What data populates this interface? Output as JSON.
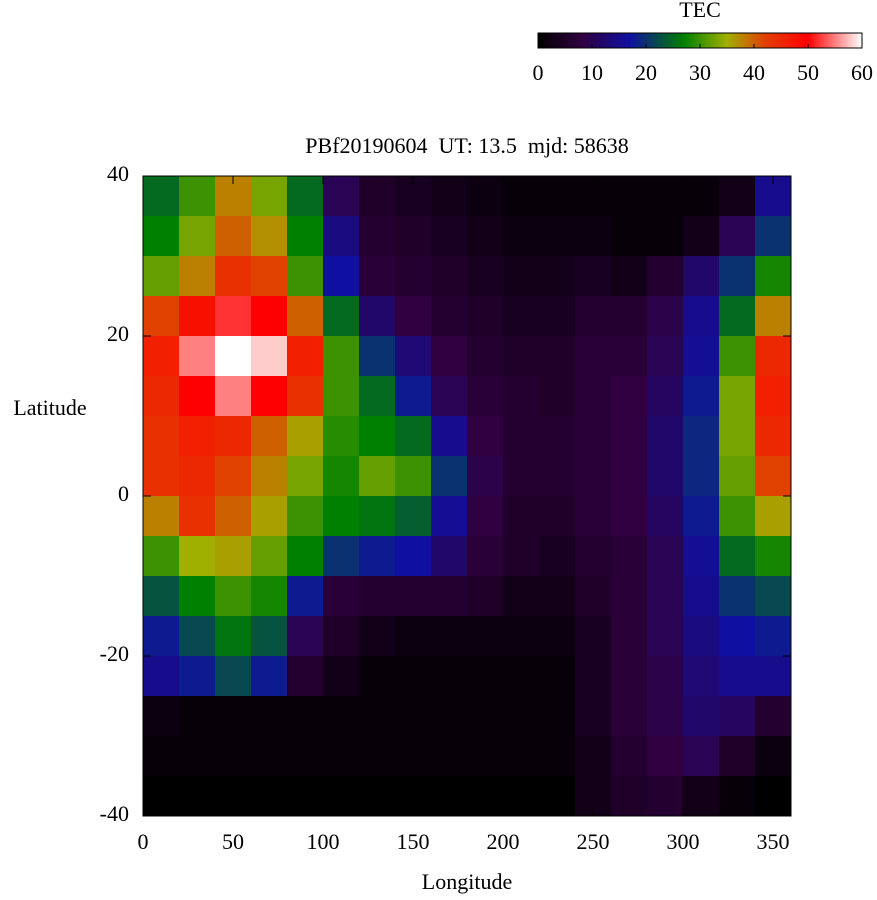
{
  "chart_data": {
    "type": "heatmap",
    "title": "PBf20190604  UT: 13.5  mjd: 58638",
    "xlabel": "Longitude",
    "ylabel": "Latitude",
    "x": [
      10,
      30,
      50,
      70,
      90,
      110,
      130,
      150,
      170,
      190,
      210,
      230,
      250,
      270,
      290,
      310,
      330,
      350
    ],
    "y": [
      37.5,
      32.5,
      27.5,
      22.5,
      17.5,
      12.5,
      7.5,
      2.5,
      -2.5,
      -7.5,
      -12.5,
      -17.5,
      -22.5,
      -27.5,
      -32.5,
      -37.5
    ],
    "xlim": [
      0,
      360
    ],
    "ylim": [
      -40,
      40
    ],
    "xticks": [
      0,
      50,
      100,
      150,
      200,
      250,
      300,
      350
    ],
    "yticks": [
      -40,
      -20,
      0,
      20,
      40
    ],
    "values": [
      [
        25,
        30,
        38,
        33,
        25,
        10,
        5,
        4,
        3,
        2,
        1,
        1,
        1,
        1,
        1,
        1,
        3,
        15
      ],
      [
        27,
        33,
        40,
        37,
        27,
        14,
        6,
        5,
        4,
        3,
        2,
        2,
        2,
        1,
        1,
        3,
        10,
        20
      ],
      [
        32,
        38,
        44,
        42,
        30,
        17,
        7,
        6,
        5,
        4,
        3,
        3,
        4,
        3,
        6,
        12,
        20,
        28
      ],
      [
        42,
        48,
        52,
        50,
        40,
        25,
        12,
        8,
        6,
        5,
        4,
        4,
        6,
        6,
        9,
        15,
        25,
        38
      ],
      [
        46,
        55,
        60,
        58,
        46,
        30,
        20,
        13,
        8,
        6,
        5,
        5,
        7,
        7,
        10,
        16,
        30,
        45
      ],
      [
        45,
        50,
        55,
        50,
        44,
        30,
        25,
        18,
        10,
        7,
        6,
        5,
        7,
        8,
        11,
        18,
        33,
        46
      ],
      [
        44,
        46,
        45,
        40,
        36,
        29,
        27,
        25,
        15,
        8,
        6,
        6,
        7,
        8,
        12,
        19,
        33,
        45
      ],
      [
        44,
        45,
        42,
        38,
        33,
        28,
        32,
        30,
        20,
        9,
        6,
        6,
        7,
        8,
        12,
        19,
        32,
        42
      ],
      [
        38,
        44,
        40,
        36,
        30,
        27,
        26,
        24,
        16,
        8,
        5,
        5,
        7,
        8,
        11,
        18,
        30,
        36
      ],
      [
        30,
        35,
        36,
        32,
        27,
        20,
        18,
        17,
        12,
        7,
        5,
        4,
        6,
        7,
        10,
        16,
        25,
        28
      ],
      [
        23,
        27,
        30,
        28,
        18,
        7,
        6,
        6,
        6,
        5,
        3,
        3,
        5,
        7,
        10,
        15,
        20,
        22
      ],
      [
        18,
        22,
        26,
        23,
        10,
        5,
        3,
        2,
        2,
        2,
        2,
        2,
        4,
        7,
        10,
        14,
        17,
        18
      ],
      [
        15,
        18,
        22,
        18,
        6,
        3,
        1,
        1,
        1,
        1,
        1,
        1,
        4,
        7,
        9,
        13,
        15,
        15
      ],
      [
        2,
        1,
        1,
        1,
        1,
        1,
        1,
        1,
        1,
        1,
        1,
        1,
        4,
        7,
        9,
        12,
        11,
        6
      ],
      [
        1,
        1,
        1,
        1,
        1,
        1,
        1,
        1,
        1,
        1,
        1,
        1,
        3,
        6,
        8,
        10,
        5,
        2
      ],
      [
        0,
        0,
        0,
        0,
        0,
        0,
        0,
        0,
        0,
        0,
        0,
        0,
        3,
        5,
        6,
        3,
        1,
        0
      ]
    ],
    "colorbar": {
      "title": "TEC",
      "lim": [
        0,
        60
      ],
      "ticks": [
        0,
        10,
        20,
        30,
        40,
        50,
        60
      ],
      "colormap": [
        [
          0,
          "#000000"
        ],
        [
          8,
          "#300040"
        ],
        [
          17,
          "#1010a0"
        ],
        [
          27,
          "#008000"
        ],
        [
          35,
          "#a0b000"
        ],
        [
          42,
          "#e04000"
        ],
        [
          50,
          "#ff0000"
        ],
        [
          60,
          "#ffffff"
        ]
      ]
    }
  }
}
